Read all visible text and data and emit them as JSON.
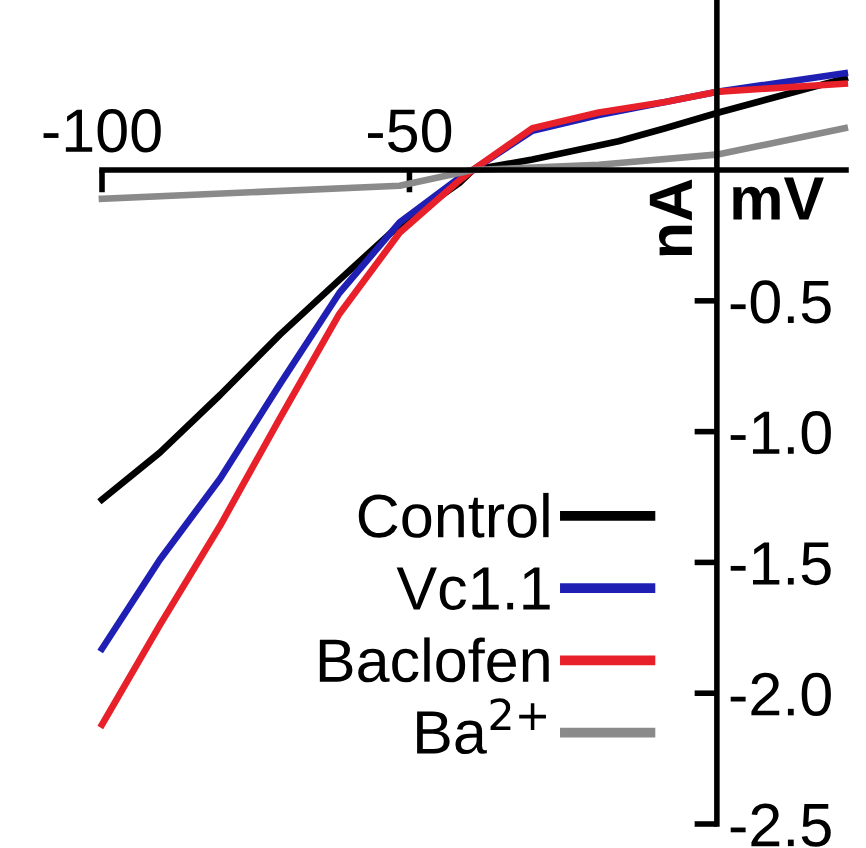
{
  "chart_data": {
    "type": "line",
    "xlabel": "mV",
    "ylabel": "nA",
    "xlim": [
      -100,
      21
    ],
    "ylim": [
      -2.5,
      0.65
    ],
    "xticks": [
      -100,
      -50
    ],
    "yticks": [
      -0.5,
      {
        "value": -1.0,
        "label": "-1.0"
      },
      -1.5,
      {
        "value": -2.0,
        "label": "-2.0"
      },
      -2.5
    ],
    "grid": false,
    "legend": "bottom right",
    "series": [
      {
        "name": "Control",
        "color": "#000000",
        "x": [
          -100,
          -90.6,
          -80.8,
          -71.1,
          -61.4,
          -51.6,
          -41.9,
          -39.7,
          -30,
          -16,
          -8.4,
          0.3,
          20.8
        ],
        "values": [
          -1.26,
          -1.08,
          -0.86,
          -0.63,
          -0.42,
          -0.21,
          -0.05,
          0,
          0.04,
          0.11,
          0.16,
          0.22,
          0.35
        ]
      },
      {
        "name": "Vc1.1",
        "color": "#1f1fb4",
        "x": [
          -100,
          -90.6,
          -80.8,
          -71.1,
          -61.4,
          -51.6,
          -41.9,
          -39.7,
          -30,
          -19.2,
          -8.4,
          0.3,
          20.8
        ],
        "values": [
          -1.83,
          -1.49,
          -1.18,
          -0.82,
          -0.47,
          -0.2,
          -0.03,
          0,
          0.15,
          0.21,
          0.26,
          0.3,
          0.37
        ]
      },
      {
        "name": "Baclofen",
        "color": "#e8202a",
        "x": [
          -100,
          -90.6,
          -80.8,
          -71.1,
          -61.4,
          -51.6,
          -41.9,
          -39.7,
          -30,
          -19.2,
          -8.4,
          0.3,
          20.8
        ],
        "values": [
          -2.12,
          -1.74,
          -1.36,
          -0.95,
          -0.55,
          -0.24,
          -0.04,
          0,
          0.16,
          0.22,
          0.26,
          0.3,
          0.33
        ]
      },
      {
        "name": "Ba$^{2+}$",
        "color": "#8a8a8a",
        "x": [
          -100,
          -51.6,
          -39.7,
          -19.2,
          0.3,
          20.8
        ],
        "values": [
          -0.11,
          -0.06,
          0,
          0.02,
          0.06,
          0.16
        ]
      }
    ]
  }
}
